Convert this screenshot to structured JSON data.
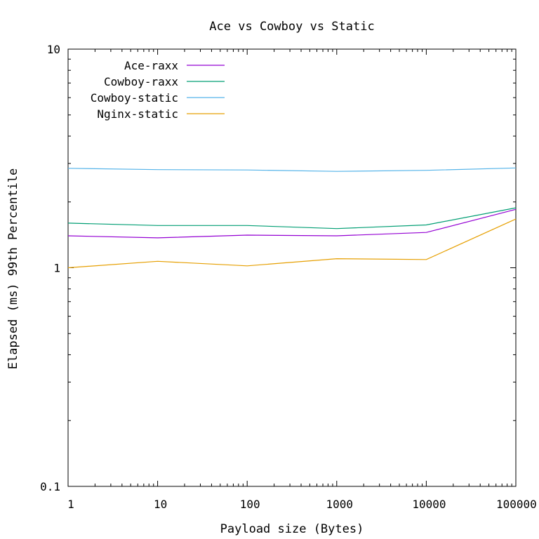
{
  "chart_data": {
    "type": "line",
    "title": "Ace vs Cowboy vs Static",
    "xlabel": "Payload size (Bytes)",
    "ylabel": "Elapsed (ms) 99th Percentile",
    "x_scale": "log",
    "y_scale": "log",
    "xlim": [
      1,
      100000
    ],
    "ylim": [
      0.1,
      10
    ],
    "x_ticks": [
      {
        "value": 1,
        "label": "1"
      },
      {
        "value": 10,
        "label": "10"
      },
      {
        "value": 100,
        "label": "100"
      },
      {
        "value": 1000,
        "label": "1000"
      },
      {
        "value": 10000,
        "label": "10000"
      },
      {
        "value": 100000,
        "label": "100000"
      }
    ],
    "y_ticks": [
      {
        "value": 0.1,
        "label": "0.1"
      },
      {
        "value": 1,
        "label": "1"
      },
      {
        "value": 10,
        "label": "10"
      }
    ],
    "grid": false,
    "legend_position": "top-left",
    "x": [
      1,
      10,
      100,
      1000,
      10000,
      100000
    ],
    "series": [
      {
        "name": "Ace-raxx",
        "color": "#9400d3",
        "values": [
          1.4,
          1.37,
          1.41,
          1.4,
          1.45,
          1.85
        ]
      },
      {
        "name": "Cowboy-raxx",
        "color": "#009e73",
        "values": [
          1.6,
          1.56,
          1.56,
          1.51,
          1.57,
          1.88
        ]
      },
      {
        "name": "Cowboy-static",
        "color": "#56b4e9",
        "values": [
          2.85,
          2.81,
          2.8,
          2.76,
          2.79,
          2.86
        ]
      },
      {
        "name": "Nginx-static",
        "color": "#e69f00",
        "values": [
          1.0,
          1.07,
          1.02,
          1.1,
          1.09,
          1.67
        ]
      }
    ]
  }
}
